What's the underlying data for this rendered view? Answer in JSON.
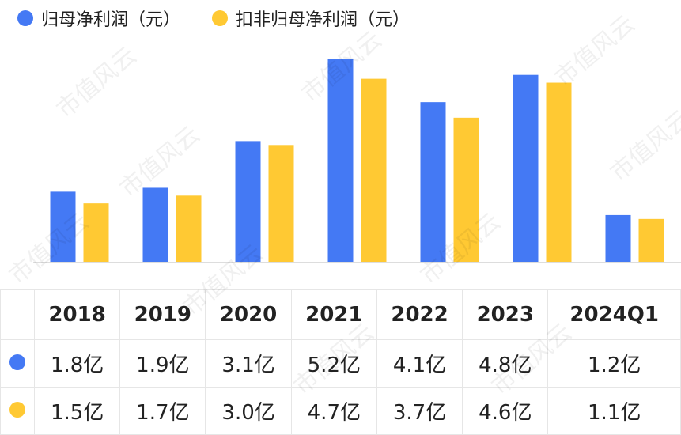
{
  "legend": {
    "series1": "归母净利润（元）",
    "series2": "扣非归母净利润（元）"
  },
  "colors": {
    "series1": "#4479f4",
    "series2": "#ffc933"
  },
  "watermark": "市值风云",
  "chart_data": {
    "type": "bar",
    "categories": [
      "2018",
      "2019",
      "2020",
      "2021",
      "2022",
      "2023",
      "2024Q1"
    ],
    "series": [
      {
        "name": "归母净利润（元）",
        "values": [
          1.8,
          1.9,
          3.1,
          5.2,
          4.1,
          4.8,
          1.2
        ]
      },
      {
        "name": "扣非归母净利润（元）",
        "values": [
          1.5,
          1.7,
          3.0,
          4.7,
          3.7,
          4.6,
          1.1
        ]
      }
    ],
    "unit": "亿",
    "ylim": [
      0,
      5.2
    ],
    "grid": false,
    "legend": "top-left"
  },
  "table": {
    "headers": [
      "2018",
      "2019",
      "2020",
      "2021",
      "2022",
      "2023",
      "2024Q1"
    ],
    "rows": [
      [
        "1.8亿",
        "1.9亿",
        "3.1亿",
        "5.2亿",
        "4.1亿",
        "4.8亿",
        "1.2亿"
      ],
      [
        "1.5亿",
        "1.7亿",
        "3.0亿",
        "4.7亿",
        "3.7亿",
        "4.6亿",
        "1.1亿"
      ]
    ]
  }
}
